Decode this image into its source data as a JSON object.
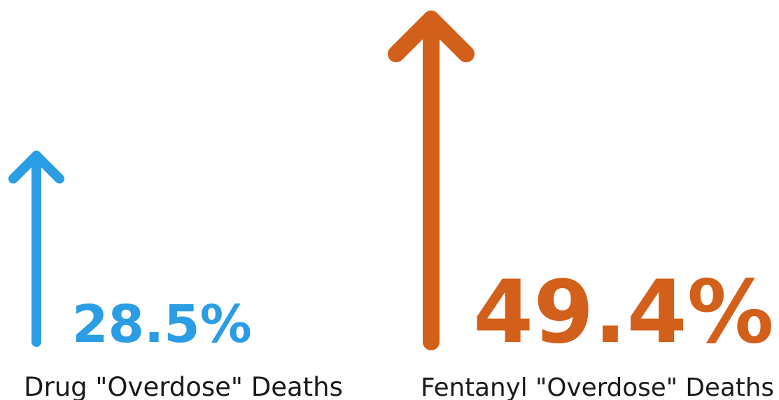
{
  "chart_data": {
    "type": "bar",
    "title": "",
    "xlabel": "",
    "ylabel": "",
    "categories": [
      "Drug \"Overdose\" Deaths",
      "Fentanyl \"Overdose\" Deaths"
    ],
    "values": [
      28.5,
      49.4
    ],
    "value_labels": [
      "28.5%",
      "49.4%"
    ],
    "unit": "%",
    "marker": "up-arrow",
    "colors": [
      "#2a9de4",
      "#d2601a"
    ],
    "grid": false,
    "legend": "none"
  }
}
